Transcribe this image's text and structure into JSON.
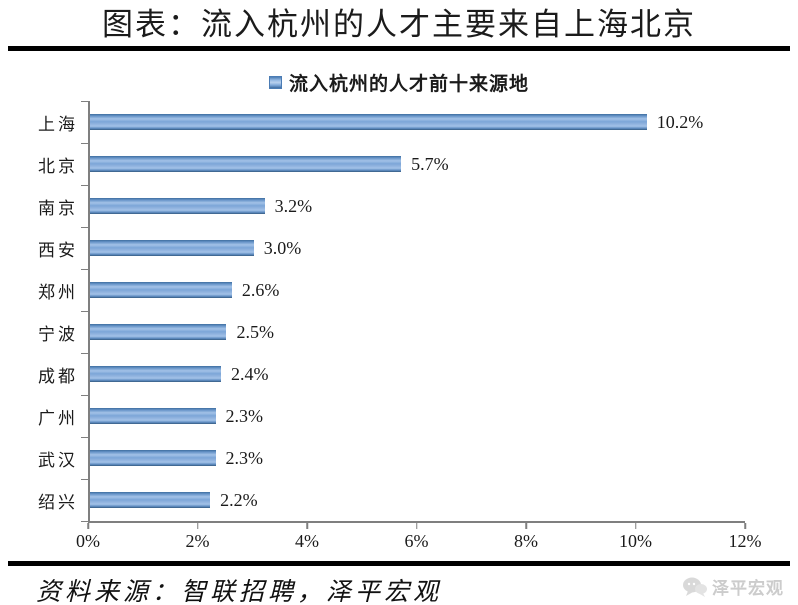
{
  "header": {
    "title": "图表：流入杭州的人才主要来自上海北京"
  },
  "chart_data": {
    "type": "bar",
    "orientation": "horizontal",
    "title": "流入杭州的人才前十来源地",
    "legend": "流入杭州的人才前十来源地",
    "legend_position": "top",
    "categories": [
      "上海",
      "北京",
      "南京",
      "西安",
      "郑州",
      "宁波",
      "成都",
      "广州",
      "武汉",
      "绍兴"
    ],
    "values": [
      10.2,
      5.7,
      3.2,
      3.0,
      2.6,
      2.5,
      2.4,
      2.3,
      2.3,
      2.2
    ],
    "value_labels": [
      "10.2%",
      "5.7%",
      "3.2%",
      "3.0%",
      "2.6%",
      "2.5%",
      "2.4%",
      "2.3%",
      "2.3%",
      "2.2%"
    ],
    "xlabel": "",
    "ylabel": "",
    "xlim": [
      0,
      12
    ],
    "x_ticks": [
      0,
      2,
      4,
      6,
      8,
      10,
      12
    ],
    "x_tick_labels": [
      "0%",
      "2%",
      "4%",
      "6%",
      "8%",
      "10%",
      "12%"
    ],
    "grid": false,
    "colors": {
      "bar_fill": "#7ca6d8",
      "bar_edge": "#3e6d9e",
      "axis": "#7f7f7f",
      "title_text": "#1b1b1b",
      "rule": "#000000",
      "watermark": "#cccccc"
    }
  },
  "footer": {
    "source": "资料来源：智联招聘，泽平宏观",
    "watermark": "泽平宏观"
  }
}
